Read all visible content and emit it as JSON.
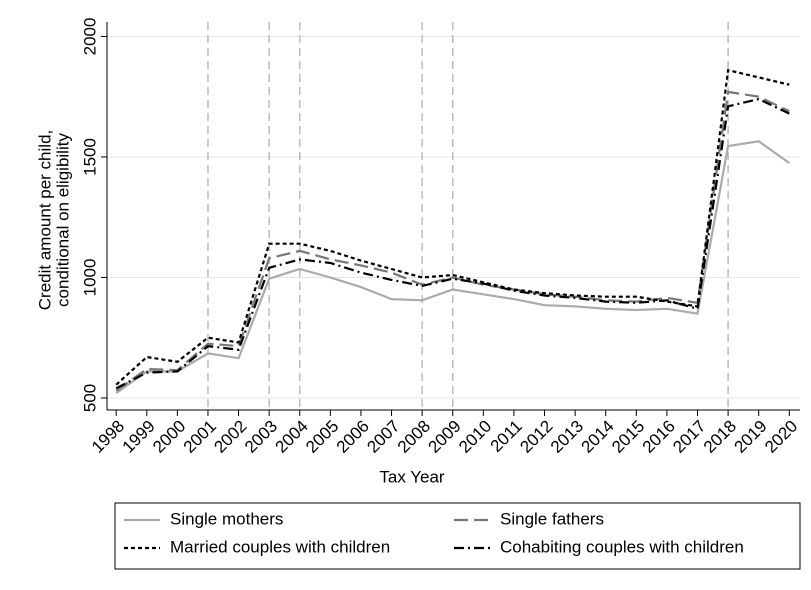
{
  "chart_data": {
    "type": "line",
    "x_label": "Tax Year",
    "y_label": [
      "Credit amount per child,",
      "conditional on eligibility"
    ],
    "x": [
      1998,
      1999,
      2000,
      2001,
      2002,
      2003,
      2004,
      2005,
      2006,
      2007,
      2008,
      2009,
      2010,
      2011,
      2012,
      2013,
      2014,
      2015,
      2016,
      2017,
      2018,
      2019,
      2020
    ],
    "xlim": [
      1997.7,
      2020.35
    ],
    "xticks": [
      1998,
      1999,
      2000,
      2001,
      2002,
      2003,
      2004,
      2005,
      2006,
      2007,
      2008,
      2009,
      2010,
      2011,
      2012,
      2013,
      2014,
      2015,
      2016,
      2017,
      2018,
      2019,
      2020
    ],
    "ylim": [
      450,
      2060
    ],
    "yticks": [
      500,
      1000,
      1500,
      2000
    ],
    "grid": true,
    "vlines": [
      2001,
      2003,
      2004,
      2008,
      2009,
      2018
    ],
    "series": [
      {
        "name": "Single mothers",
        "color": "#aaaaaa",
        "dash": "solid",
        "values": [
          520,
          610,
          610,
          685,
          665,
          995,
          1035,
          1000,
          960,
          910,
          905,
          950,
          930,
          910,
          885,
          880,
          870,
          865,
          870,
          850,
          1545,
          1565,
          1475
        ]
      },
      {
        "name": "Single fathers",
        "color": "#777777",
        "dash": "long",
        "values": [
          530,
          620,
          615,
          725,
          715,
          1080,
          1110,
          1075,
          1050,
          1020,
          970,
          1000,
          970,
          950,
          930,
          920,
          905,
          900,
          915,
          895,
          1770,
          1750,
          1690
        ]
      },
      {
        "name": "Married couples with children",
        "color": "#000000",
        "dash": "short",
        "values": [
          555,
          670,
          650,
          750,
          730,
          1140,
          1140,
          1110,
          1070,
          1035,
          1000,
          1010,
          980,
          950,
          935,
          925,
          920,
          920,
          900,
          880,
          1860,
          1830,
          1800
        ]
      },
      {
        "name": "Cohabiting couples with children",
        "color": "#000000",
        "dash": "dashdot",
        "values": [
          540,
          605,
          610,
          715,
          700,
          1040,
          1075,
          1060,
          1020,
          990,
          965,
          995,
          975,
          945,
          925,
          915,
          900,
          895,
          905,
          870,
          1710,
          1740,
          1680
        ]
      }
    ]
  }
}
